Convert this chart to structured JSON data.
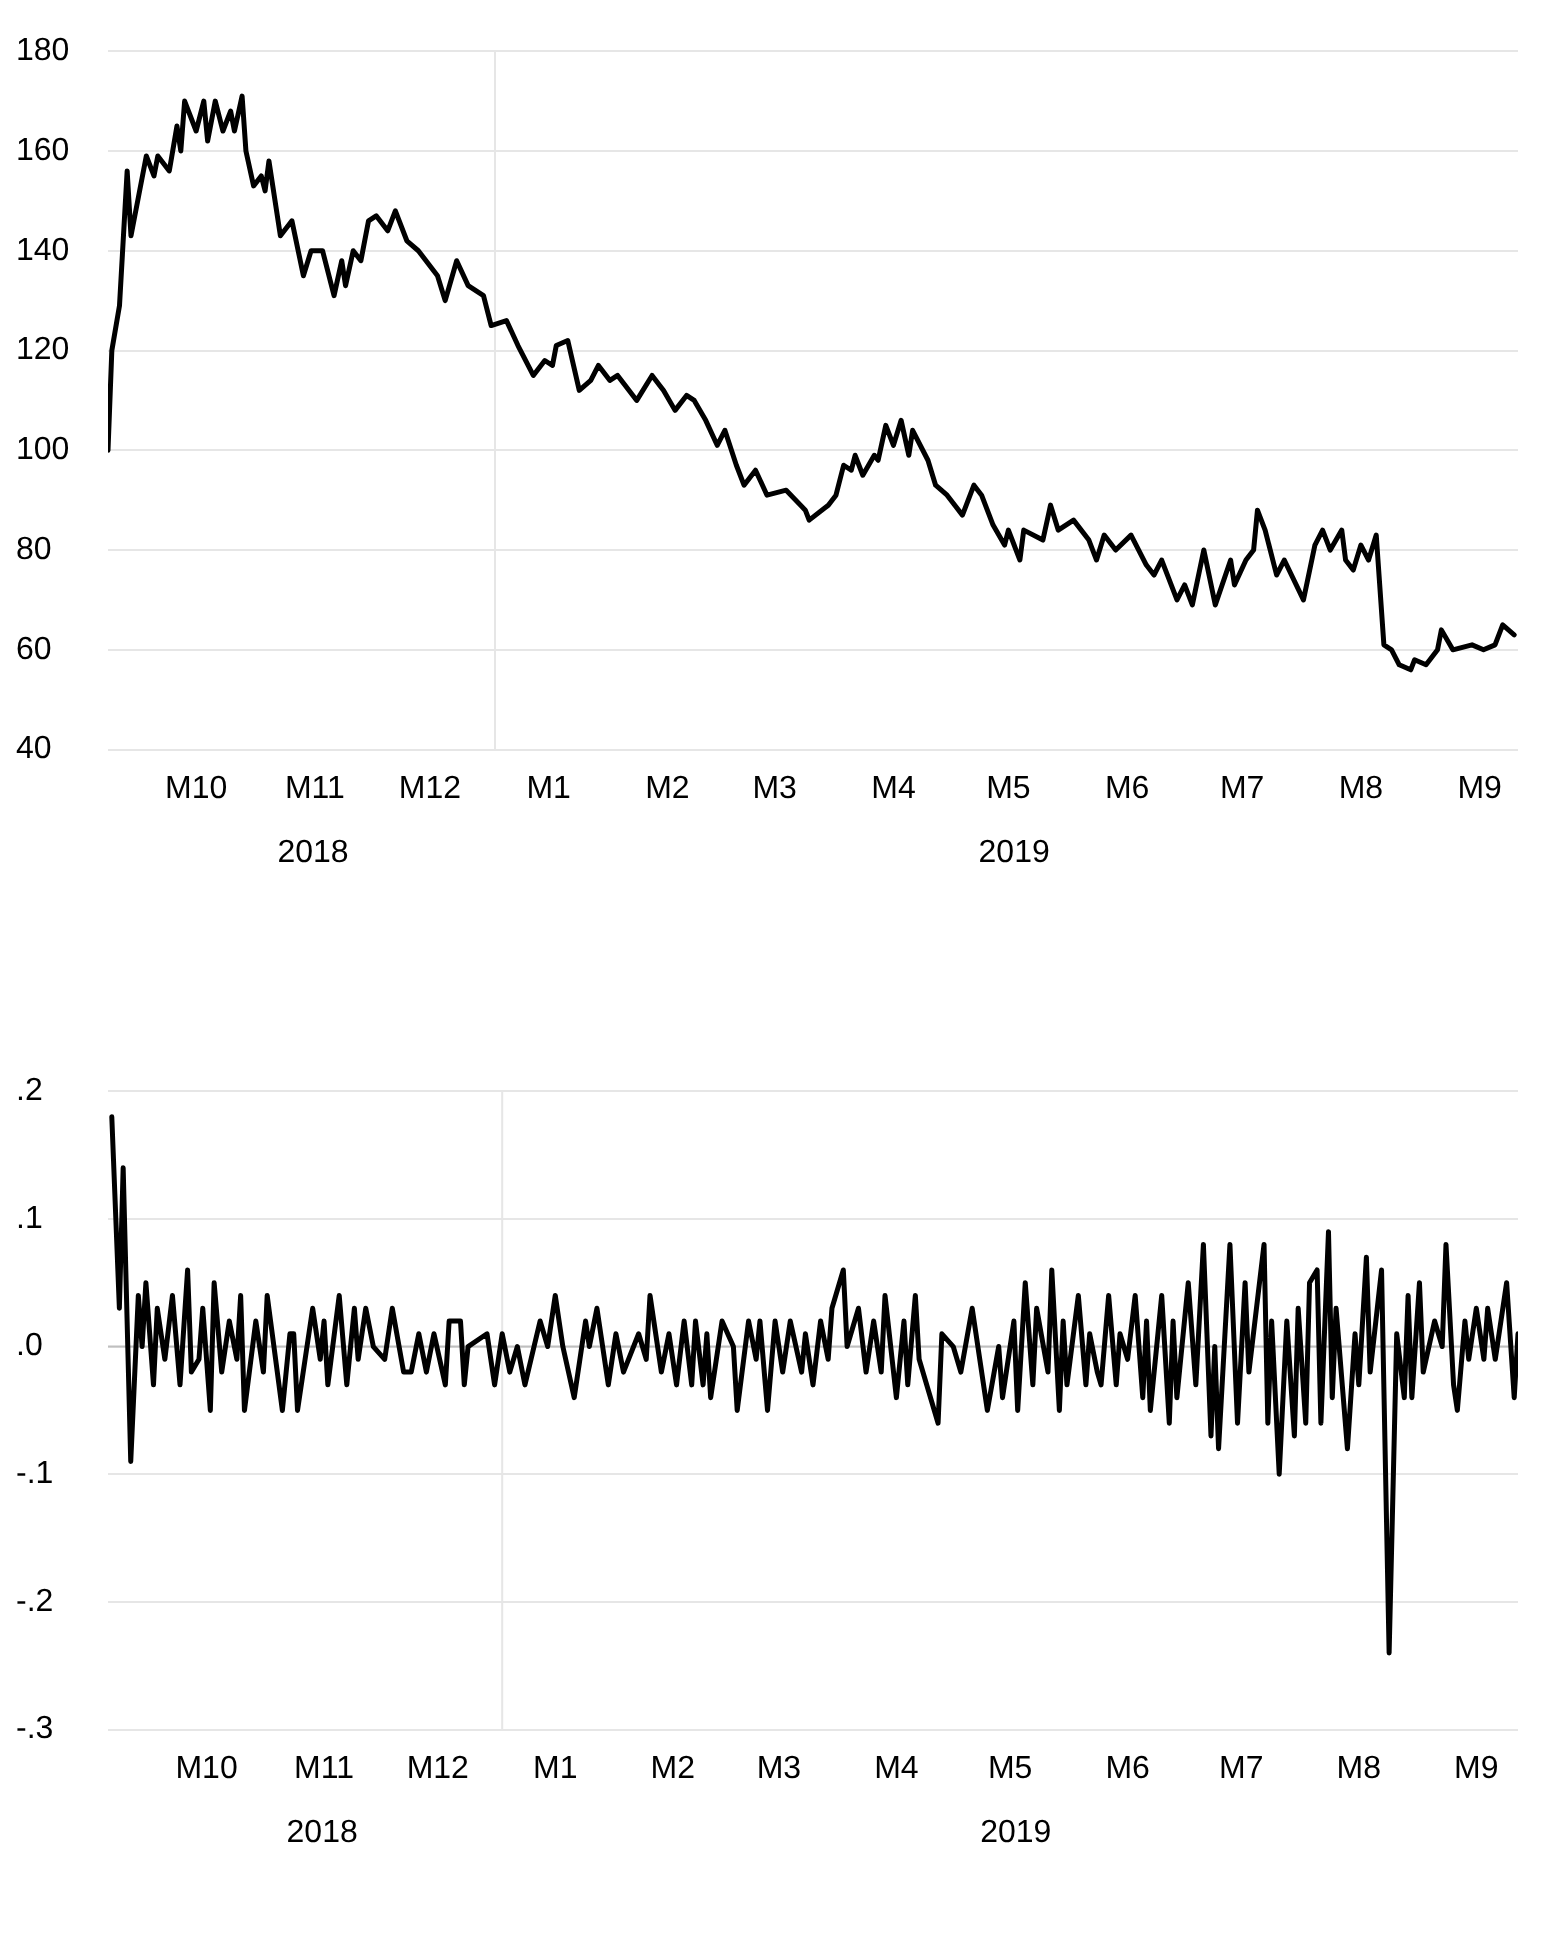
{
  "chart_data": [
    {
      "type": "line",
      "x": [
        "2018-09-22",
        "2018-09-23",
        "2018-09-25",
        "2018-09-27",
        "2018-09-28",
        "2018-09-30",
        "2018-10-02",
        "2018-10-04",
        "2018-10-05",
        "2018-10-08",
        "2018-10-10",
        "2018-10-11",
        "2018-10-12",
        "2018-10-15",
        "2018-10-17",
        "2018-10-18",
        "2018-10-20",
        "2018-10-22",
        "2018-10-24",
        "2018-10-25",
        "2018-10-27",
        "2018-10-28",
        "2018-10-30",
        "2018-11-01",
        "2018-11-02",
        "2018-11-03",
        "2018-11-06",
        "2018-11-09",
        "2018-11-12",
        "2018-11-14",
        "2018-11-17",
        "2018-11-20",
        "2018-11-22",
        "2018-11-23",
        "2018-11-25",
        "2018-11-27",
        "2018-11-29",
        "2018-12-01",
        "2018-12-04",
        "2018-12-06",
        "2018-12-09",
        "2018-12-12",
        "2018-12-14",
        "2018-12-17",
        "2018-12-19",
        "2018-12-22",
        "2018-12-25",
        "2018-12-29",
        "2018-12-31",
        "2019-01-04",
        "2019-01-07",
        "2019-01-11",
        "2019-01-14",
        "2019-01-16",
        "2019-01-17",
        "2019-01-20",
        "2019-01-23",
        "2019-01-26",
        "2019-01-28",
        "2019-01-31",
        "2019-02-02",
        "2019-02-07",
        "2019-02-11",
        "2019-02-14",
        "2019-02-17",
        "2019-02-20",
        "2019-02-22",
        "2019-02-25",
        "2019-02-28",
        "2019-03-02",
        "2019-03-05",
        "2019-03-07",
        "2019-03-10",
        "2019-03-13",
        "2019-03-18",
        "2019-03-23",
        "2019-03-24",
        "2019-03-29",
        "2019-03-31",
        "2019-04-02",
        "2019-04-04",
        "2019-04-05",
        "2019-04-07",
        "2019-04-10",
        "2019-04-11",
        "2019-04-13",
        "2019-04-15",
        "2019-04-17",
        "2019-04-19",
        "2019-04-20",
        "2019-04-24",
        "2019-04-26",
        "2019-04-29",
        "2019-05-03",
        "2019-05-06",
        "2019-05-08",
        "2019-05-11",
        "2019-05-14",
        "2019-05-15",
        "2019-05-18",
        "2019-05-19",
        "2019-05-24",
        "2019-05-26",
        "2019-05-28",
        "2019-06-01",
        "2019-06-05",
        "2019-06-07",
        "2019-06-09",
        "2019-06-12",
        "2019-06-16",
        "2019-06-20",
        "2019-06-22",
        "2019-06-24",
        "2019-06-28",
        "2019-06-30",
        "2019-07-02",
        "2019-07-05",
        "2019-07-08",
        "2019-07-12",
        "2019-07-13",
        "2019-07-16",
        "2019-07-18",
        "2019-07-19",
        "2019-07-21",
        "2019-07-24",
        "2019-07-26",
        "2019-07-31",
        "2019-08-03",
        "2019-08-05",
        "2019-08-07",
        "2019-08-10",
        "2019-08-11",
        "2019-08-13",
        "2019-08-15",
        "2019-08-17",
        "2019-08-19",
        "2019-08-21",
        "2019-08-23",
        "2019-08-25",
        "2019-08-28",
        "2019-08-29",
        "2019-09-01",
        "2019-09-04",
        "2019-09-05",
        "2019-09-08",
        "2019-09-13",
        "2019-09-16",
        "2019-09-19",
        "2019-09-21",
        "2019-09-24"
      ],
      "series": [
        {
          "color": "#000000",
          "values": [
            100,
            120,
            129,
            156,
            143,
            151,
            159,
            155,
            159,
            156,
            165,
            160,
            170,
            164,
            170,
            162,
            170,
            164,
            168,
            164,
            171,
            160,
            153,
            155,
            152,
            158,
            143,
            146,
            135,
            140,
            140,
            131,
            138,
            133,
            140,
            138,
            146,
            147,
            144,
            148,
            142,
            140,
            138,
            135,
            130,
            138,
            133,
            131,
            125,
            126,
            121,
            115,
            118,
            117,
            121,
            122,
            112,
            114,
            117,
            114,
            115,
            110,
            115,
            112,
            108,
            111,
            110,
            106,
            101,
            104,
            97,
            93,
            96,
            91,
            92,
            88,
            86,
            89,
            91,
            97,
            96,
            99,
            95,
            99,
            98,
            105,
            101,
            106,
            99,
            104,
            98,
            93,
            91,
            87,
            93,
            91,
            85,
            81,
            84,
            78,
            84,
            82,
            89,
            84,
            86,
            82,
            78,
            83,
            80,
            83,
            77,
            75,
            78,
            70,
            73,
            69,
            80,
            69,
            78,
            73,
            78,
            80,
            88,
            84,
            75,
            78,
            70,
            81,
            84,
            80,
            84,
            78,
            76,
            81,
            78,
            83,
            61,
            60,
            57,
            56,
            58,
            57,
            60,
            64,
            60,
            61,
            60,
            61,
            65,
            63
          ]
        }
      ],
      "xlim": [
        "2018-09-22",
        "2019-09-25"
      ],
      "xticks": [
        {
          "value": "2018-10-15",
          "label": "M10"
        },
        {
          "value": "2018-11-15",
          "label": "M11"
        },
        {
          "value": "2018-12-15",
          "label": "M12"
        },
        {
          "value": "2019-01-15",
          "label": "M1"
        },
        {
          "value": "2019-02-15",
          "label": "M2"
        },
        {
          "value": "2019-03-15",
          "label": "M3"
        },
        {
          "value": "2019-04-15",
          "label": "M4"
        },
        {
          "value": "2019-05-15",
          "label": "M5"
        },
        {
          "value": "2019-06-15",
          "label": "M6"
        },
        {
          "value": "2019-07-15",
          "label": "M7"
        },
        {
          "value": "2019-08-15",
          "label": "M8"
        },
        {
          "value": "2019-09-15",
          "label": "M9"
        }
      ],
      "ylim": [
        40,
        180
      ],
      "yticks": [
        40,
        60,
        80,
        100,
        120,
        140,
        160,
        180
      ],
      "grid": "y",
      "marker": "none",
      "line_style": "solid",
      "ref_lines": [
        {
          "axis": "x",
          "value": "2019-01-01",
          "color": "#e6e6e6"
        }
      ],
      "annotations": [
        "2018",
        "2019"
      ]
    },
    {
      "type": "line",
      "x": [
        "2018-09-20",
        "2018-09-22",
        "2018-09-23",
        "2018-09-25",
        "2018-09-27",
        "2018-09-28",
        "2018-09-29",
        "2018-10-01",
        "2018-10-02",
        "2018-10-04",
        "2018-10-06",
        "2018-10-08",
        "2018-10-10",
        "2018-10-11",
        "2018-10-13",
        "2018-10-14",
        "2018-10-16",
        "2018-10-17",
        "2018-10-19",
        "2018-10-21",
        "2018-10-23",
        "2018-10-24",
        "2018-10-25",
        "2018-10-28",
        "2018-10-30",
        "2018-10-31",
        "2018-11-04",
        "2018-11-06",
        "2018-11-07",
        "2018-11-08",
        "2018-11-12",
        "2018-11-14",
        "2018-11-15",
        "2018-11-16",
        "2018-11-19",
        "2018-11-21",
        "2018-11-23",
        "2018-11-24",
        "2018-11-26",
        "2018-11-28",
        "2018-12-01",
        "2018-12-03",
        "2018-12-06",
        "2018-12-08",
        "2018-12-10",
        "2018-12-12",
        "2018-12-14",
        "2018-12-17",
        "2018-12-18",
        "2018-12-21",
        "2018-12-22",
        "2018-12-23",
        "2018-12-28",
        "2018-12-30",
        "2019-01-01",
        "2019-01-03",
        "2019-01-05",
        "2019-01-07",
        "2019-01-11",
        "2019-01-13",
        "2019-01-15",
        "2019-01-17",
        "2019-01-20",
        "2019-01-23",
        "2019-01-24",
        "2019-01-26",
        "2019-01-29",
        "2019-01-31",
        "2019-02-02",
        "2019-02-06",
        "2019-02-08",
        "2019-02-09",
        "2019-02-12",
        "2019-02-14",
        "2019-02-16",
        "2019-02-18",
        "2019-02-20",
        "2019-02-21",
        "2019-02-23",
        "2019-02-24",
        "2019-02-25",
        "2019-02-28",
        "2019-03-03",
        "2019-03-04",
        "2019-03-07",
        "2019-03-09",
        "2019-03-10",
        "2019-03-12",
        "2019-03-14",
        "2019-03-16",
        "2019-03-18",
        "2019-03-21",
        "2019-03-22",
        "2019-03-24",
        "2019-03-26",
        "2019-03-28",
        "2019-03-29",
        "2019-04-01",
        "2019-04-02",
        "2019-04-05",
        "2019-04-07",
        "2019-04-09",
        "2019-04-11",
        "2019-04-12",
        "2019-04-15",
        "2019-04-17",
        "2019-04-18",
        "2019-04-20",
        "2019-04-21",
        "2019-04-26",
        "2019-04-27",
        "2019-04-30",
        "2019-05-02",
        "2019-05-05",
        "2019-05-07",
        "2019-05-09",
        "2019-05-12",
        "2019-05-13",
        "2019-05-16",
        "2019-05-17",
        "2019-05-19",
        "2019-05-21",
        "2019-05-22",
        "2019-05-25",
        "2019-05-26",
        "2019-05-28",
        "2019-05-29",
        "2019-05-30",
        "2019-06-02",
        "2019-06-04",
        "2019-06-05",
        "2019-06-07",
        "2019-06-08",
        "2019-06-10",
        "2019-06-12",
        "2019-06-13",
        "2019-06-15",
        "2019-06-17",
        "2019-06-19",
        "2019-06-20",
        "2019-06-21",
        "2019-06-24",
        "2019-06-26",
        "2019-06-27",
        "2019-06-28",
        "2019-07-01",
        "2019-07-03",
        "2019-07-05",
        "2019-07-07",
        "2019-07-08",
        "2019-07-09",
        "2019-07-12",
        "2019-07-14",
        "2019-07-16",
        "2019-07-17",
        "2019-07-21",
        "2019-07-22",
        "2019-07-23",
        "2019-07-25",
        "2019-07-27",
        "2019-07-29",
        "2019-07-30",
        "2019-08-01",
        "2019-08-02",
        "2019-08-04",
        "2019-08-05",
        "2019-08-07",
        "2019-08-08",
        "2019-08-09",
        "2019-08-12",
        "2019-08-14",
        "2019-08-15",
        "2019-08-17",
        "2019-08-18",
        "2019-08-21",
        "2019-08-23",
        "2019-08-25",
        "2019-08-27",
        "2019-08-28",
        "2019-08-29",
        "2019-08-31",
        "2019-09-01",
        "2019-09-04",
        "2019-09-06",
        "2019-09-07",
        "2019-09-09",
        "2019-09-10",
        "2019-09-12",
        "2019-09-13",
        "2019-09-15",
        "2019-09-17",
        "2019-09-18",
        "2019-09-20",
        "2019-09-23",
        "2019-09-25",
        "2019-09-26"
      ],
      "series": [
        {
          "color": "#000000",
          "values": [
            0.18,
            0.03,
            0.14,
            -0.09,
            0.04,
            0,
            0.05,
            -0.03,
            0.03,
            -0.01,
            0.04,
            -0.03,
            0.06,
            -0.02,
            -0.01,
            0.03,
            -0.05,
            0.05,
            -0.02,
            0.02,
            -0.01,
            0.04,
            -0.05,
            0.02,
            -0.02,
            0.04,
            -0.05,
            0.01,
            0.01,
            -0.05,
            0.03,
            -0.01,
            0.02,
            -0.03,
            0.04,
            -0.03,
            0.03,
            -0.01,
            0.03,
            0,
            -0.01,
            0.03,
            -0.02,
            -0.02,
            0.01,
            -0.02,
            0.01,
            -0.03,
            0.02,
            0.02,
            -0.03,
            0,
            0.01,
            -0.03,
            0.01,
            -0.02,
            0,
            -0.03,
            0.02,
            0,
            0.04,
            0,
            -0.04,
            0.02,
            0,
            0.03,
            -0.03,
            0.01,
            -0.02,
            0.01,
            -0.01,
            0.04,
            -0.02,
            0.01,
            -0.03,
            0.02,
            -0.03,
            0.02,
            -0.03,
            0.01,
            -0.04,
            0.02,
            0,
            -0.05,
            0.02,
            -0.01,
            0.02,
            -0.05,
            0.02,
            -0.02,
            0.02,
            -0.02,
            0.01,
            -0.03,
            0.02,
            -0.01,
            0.03,
            0.06,
            0,
            0.03,
            -0.02,
            0.02,
            -0.02,
            0.04,
            -0.04,
            0.02,
            -0.03,
            0.04,
            -0.01,
            -0.06,
            0.01,
            0,
            -0.02,
            0.03,
            -0.01,
            -0.05,
            0,
            -0.04,
            0.02,
            -0.05,
            0.05,
            -0.03,
            0.03,
            -0.02,
            0.06,
            -0.05,
            0.02,
            -0.03,
            0.04,
            -0.03,
            0.01,
            -0.02,
            -0.03,
            0.04,
            -0.03,
            0.01,
            -0.01,
            0.04,
            -0.04,
            0.02,
            -0.05,
            0.04,
            -0.06,
            0.02,
            -0.04,
            0.05,
            -0.03,
            0.08,
            -0.07,
            0,
            -0.08,
            0.08,
            -0.06,
            0.05,
            -0.02,
            0.08,
            -0.06,
            0.02,
            -0.1,
            0.02,
            -0.07,
            0.03,
            -0.06,
            0.05,
            0.06,
            -0.06,
            0.09,
            -0.04,
            0.03,
            -0.08,
            0.01,
            -0.03,
            0.07,
            -0.02,
            0.06,
            -0.24,
            0.01,
            -0.04,
            0.04,
            -0.04,
            0.05,
            -0.02,
            0.02,
            0,
            0.08,
            -0.03,
            -0.05,
            0.02,
            -0.01,
            0.03,
            -0.01,
            0.03,
            -0.01,
            0.05,
            -0.04,
            0.01
          ]
        }
      ],
      "xlim": [
        "2018-09-19",
        "2019-09-26"
      ],
      "xticks": [
        {
          "value": "2018-10-15",
          "label": "M10"
        },
        {
          "value": "2018-11-15",
          "label": "M11"
        },
        {
          "value": "2018-12-15",
          "label": "M12"
        },
        {
          "value": "2019-01-15",
          "label": "M1"
        },
        {
          "value": "2019-02-15",
          "label": "M2"
        },
        {
          "value": "2019-03-15",
          "label": "M3"
        },
        {
          "value": "2019-04-15",
          "label": "M4"
        },
        {
          "value": "2019-05-15",
          "label": "M5"
        },
        {
          "value": "2019-06-15",
          "label": "M6"
        },
        {
          "value": "2019-07-15",
          "label": "M7"
        },
        {
          "value": "2019-08-15",
          "label": "M8"
        },
        {
          "value": "2019-09-15",
          "label": "M9"
        }
      ],
      "ylim": [
        -0.3,
        0.2
      ],
      "yticks": [
        {
          "value": -0.3,
          "label": "-.3"
        },
        {
          "value": -0.2,
          "label": "-.2"
        },
        {
          "value": -0.1,
          "label": "-.1"
        },
        {
          "value": 0,
          "label": ".0"
        },
        {
          "value": 0.1,
          "label": ".1"
        },
        {
          "value": 0.2,
          "label": ".2"
        }
      ],
      "grid": "y",
      "marker": "none",
      "line_style": "solid",
      "ref_lines": [
        {
          "axis": "x",
          "value": "2019-01-01",
          "color": "#e6e6e6"
        },
        {
          "axis": "y",
          "value": 0,
          "color": "#bfbfbf"
        }
      ],
      "annotations": [
        "2018",
        "2019"
      ]
    }
  ]
}
